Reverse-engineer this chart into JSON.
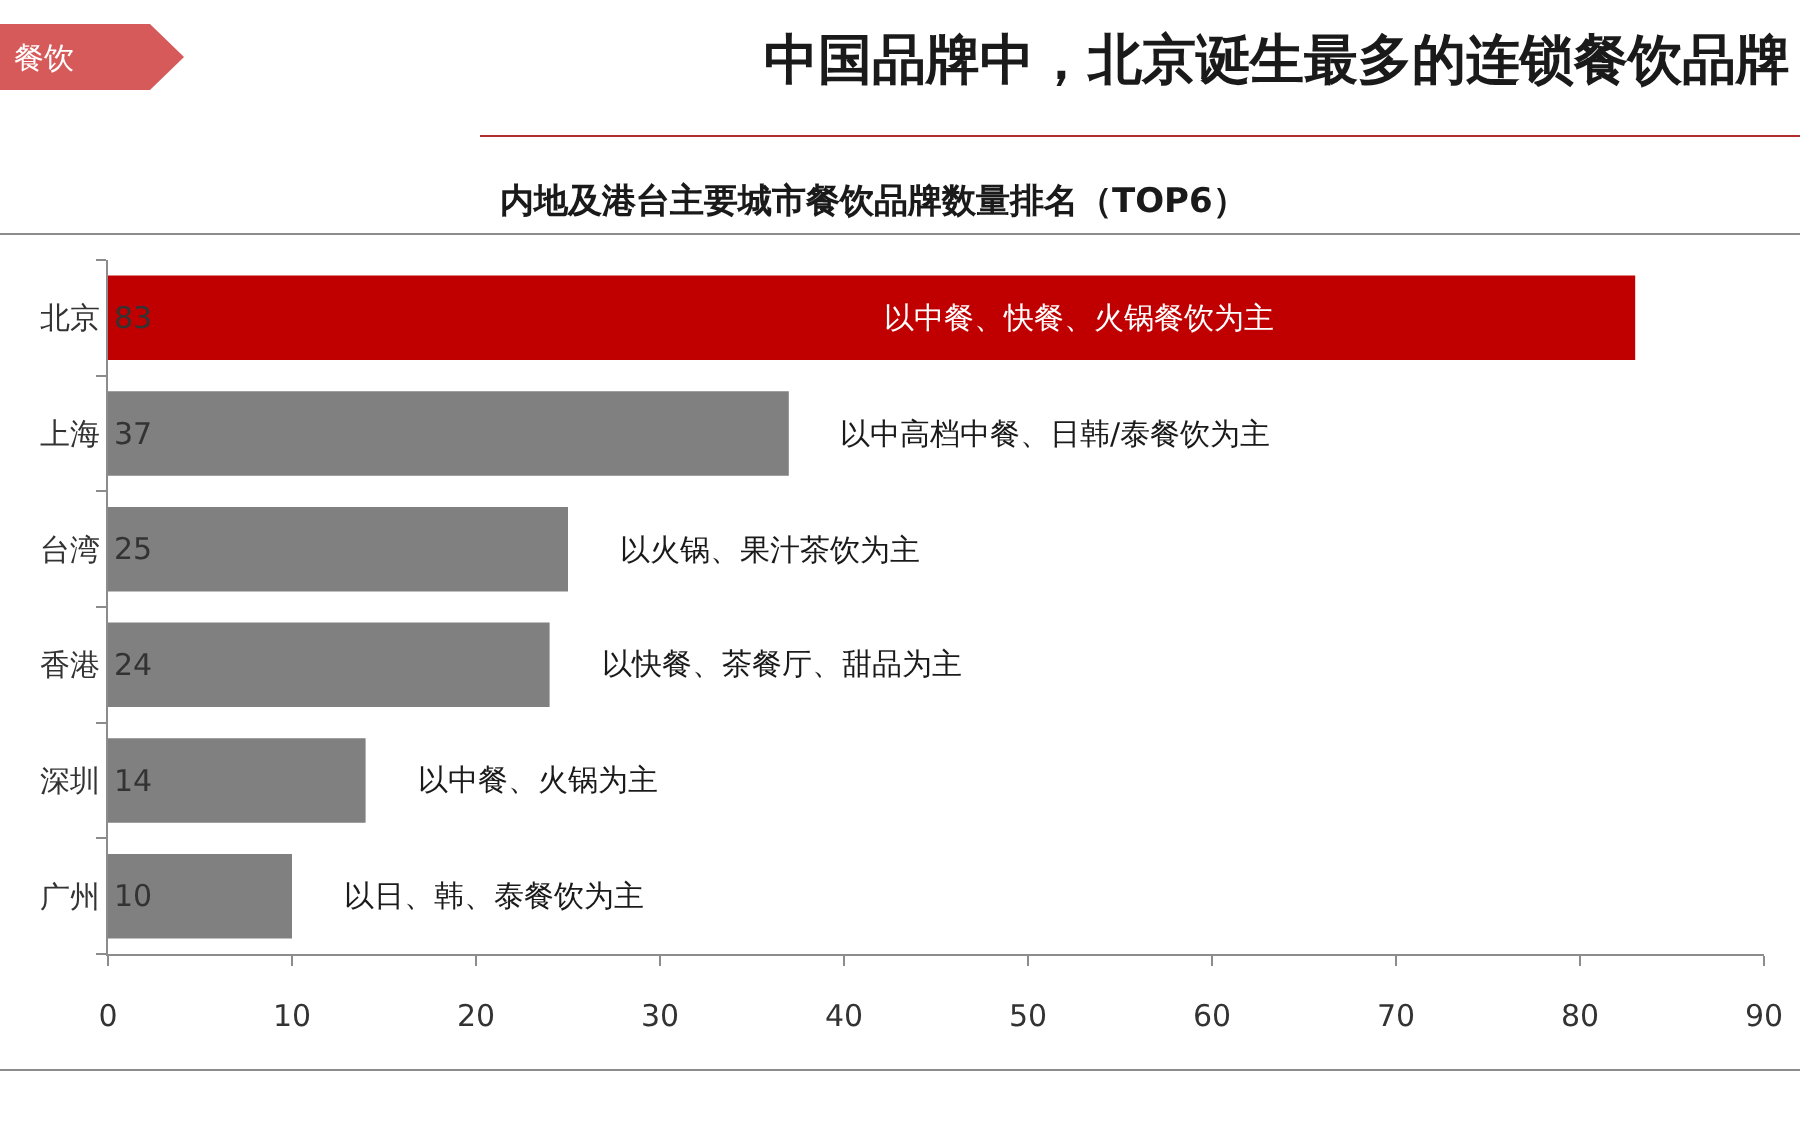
{
  "chart_data": {
    "type": "bar",
    "orientation": "horizontal",
    "title": "中国品牌中，北京诞生最多的连锁餐饮品牌",
    "subtitle": "内地及港台主要城市餐饮品牌数量排名（TOP6）",
    "categories": [
      "北京",
      "上海",
      "台湾",
      "香港",
      "深圳",
      "广州"
    ],
    "values": [
      83,
      37,
      25,
      24,
      14,
      10
    ],
    "colors": [
      "#c00000",
      "#808080",
      "#808080",
      "#808080",
      "#808080",
      "#808080"
    ],
    "xlim": [
      0,
      90
    ],
    "xticks": [
      0,
      10,
      20,
      30,
      40,
      50,
      60,
      70,
      80,
      90
    ],
    "data_labels": true,
    "annotations": [
      "餐饮",
      {
        "text": "以中餐、快餐、火锅餐饮为主",
        "x": 42,
        "y": "北京"
      },
      {
        "text": "以中高档中餐、日韩/泰餐饮为主",
        "x": 37,
        "y": "上海"
      },
      {
        "text": "以火锅、果汁茶饮为主",
        "x": 25,
        "y": "台湾"
      },
      {
        "text": "以快餐、茶餐厅、甜品为主",
        "x": 24,
        "y": "香港"
      },
      {
        "text": "以中餐、火锅为主",
        "x": 14,
        "y": "深圳"
      },
      {
        "text": "以日、韩、泰餐饮为主",
        "x": 10,
        "y": "广州"
      }
    ]
  }
}
